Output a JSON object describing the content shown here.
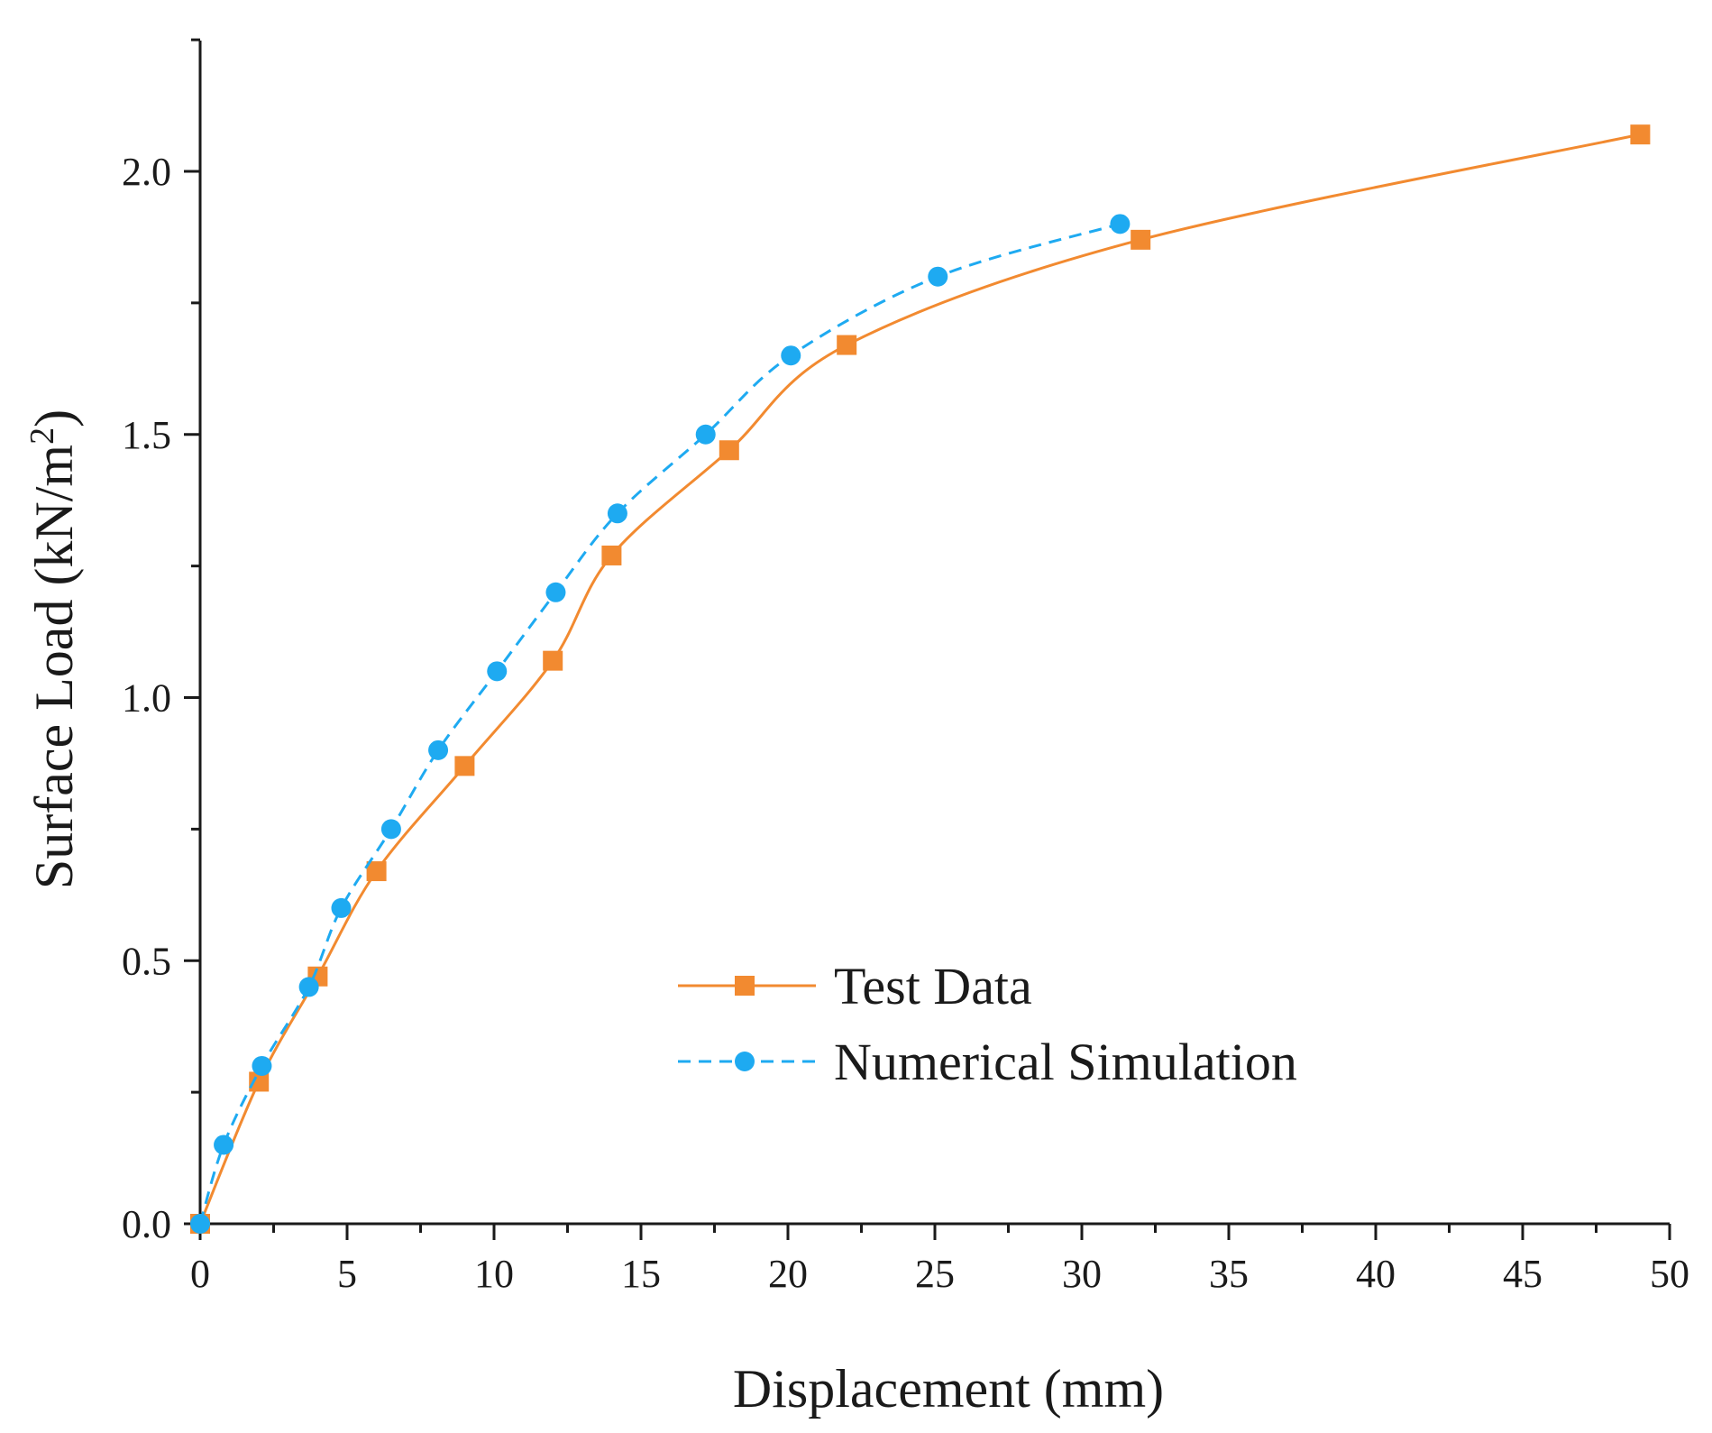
{
  "chart_data": {
    "type": "line",
    "title": "",
    "xlabel": "Displacement (mm)",
    "ylabel_main": "Surface Load (kN/m",
    "ylabel_sup": "2",
    "ylabel_close": ")",
    "xlim": [
      0,
      50
    ],
    "ylim": [
      0,
      2.25
    ],
    "x_ticks": [
      "0",
      "5",
      "10",
      "15",
      "20",
      "25",
      "30",
      "35",
      "40",
      "45",
      "50"
    ],
    "y_ticks": [
      "0.0",
      "0.5",
      "1.0",
      "1.5",
      "2.0"
    ],
    "grid": false,
    "legend_position": "center-right",
    "series": [
      {
        "name": "Test Data",
        "color": "#f28a30",
        "line_style": "solid",
        "marker": "square",
        "x": [
          0,
          2,
          4,
          6,
          9,
          12,
          14,
          18,
          22,
          32,
          49
        ],
        "y": [
          0,
          0.27,
          0.47,
          0.67,
          0.87,
          1.07,
          1.27,
          1.47,
          1.67,
          1.87,
          2.07
        ]
      },
      {
        "name": "Numerical Simulation",
        "color": "#1eaaf1",
        "line_style": "dashed",
        "marker": "circle",
        "x": [
          0,
          0.8,
          2.1,
          3.7,
          4.8,
          6.5,
          8.1,
          10.1,
          12.1,
          14.2,
          17.2,
          20.1,
          25.1,
          31.3
        ],
        "y": [
          0,
          0.15,
          0.3,
          0.45,
          0.6,
          0.75,
          0.9,
          1.05,
          1.2,
          1.35,
          1.5,
          1.65,
          1.8,
          1.9
        ]
      }
    ]
  }
}
